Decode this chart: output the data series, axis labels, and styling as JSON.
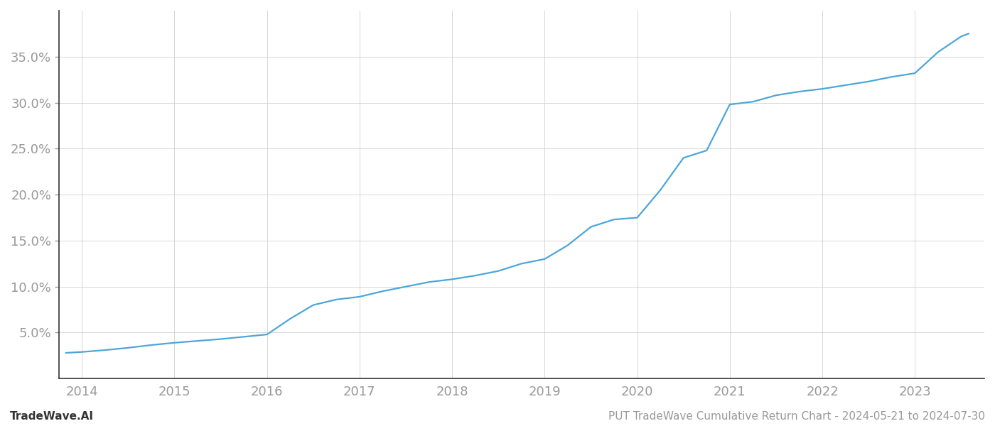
{
  "title": "",
  "footer_left": "TradeWave.AI",
  "footer_right": "PUT TradeWave Cumulative Return Chart - 2024-05-21 to 2024-07-30",
  "line_color": "#4da6d9",
  "background_color": "#ffffff",
  "grid_color": "#d0d0d0",
  "x_years": [
    2014,
    2015,
    2016,
    2017,
    2018,
    2019,
    2020,
    2021,
    2022,
    2023
  ],
  "x_data": [
    2013.83,
    2014.0,
    2014.25,
    2014.5,
    2014.75,
    2015.0,
    2015.25,
    2015.5,
    2015.75,
    2016.0,
    2016.25,
    2016.5,
    2016.75,
    2017.0,
    2017.25,
    2017.5,
    2017.75,
    2018.0,
    2018.25,
    2018.5,
    2018.75,
    2019.0,
    2019.25,
    2019.5,
    2019.75,
    2020.0,
    2020.25,
    2020.5,
    2020.75,
    2021.0,
    2021.25,
    2021.5,
    2021.75,
    2022.0,
    2022.25,
    2022.5,
    2022.75,
    2023.0,
    2023.25,
    2023.5,
    2023.58
  ],
  "y_data": [
    2.8,
    2.9,
    3.1,
    3.35,
    3.65,
    3.9,
    4.1,
    4.3,
    4.55,
    4.8,
    6.5,
    8.0,
    8.6,
    8.9,
    9.5,
    10.0,
    10.5,
    10.8,
    11.2,
    11.7,
    12.5,
    13.0,
    14.5,
    16.5,
    17.3,
    17.5,
    20.5,
    24.0,
    24.8,
    29.8,
    30.1,
    30.8,
    31.2,
    31.5,
    31.9,
    32.3,
    32.8,
    33.2,
    35.5,
    37.2,
    37.5
  ],
  "yticks": [
    5.0,
    10.0,
    15.0,
    20.0,
    25.0,
    30.0,
    35.0
  ],
  "ylim": [
    0,
    40
  ],
  "xlim": [
    2013.75,
    2023.75
  ],
  "footer_fontsize": 11,
  "tick_fontsize": 13,
  "line_width": 1.6,
  "tick_color": "#999999",
  "spine_color": "#333333"
}
